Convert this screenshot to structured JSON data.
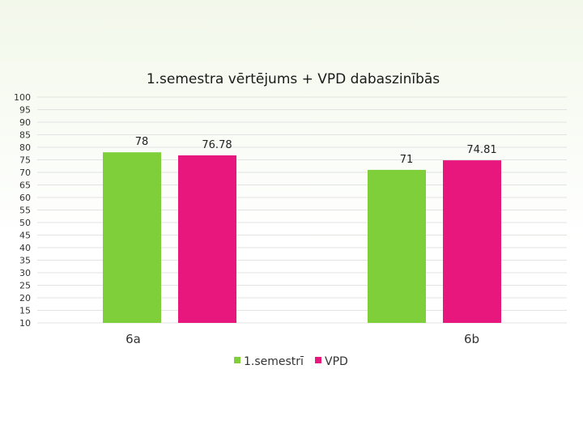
{
  "chart_data": {
    "type": "bar",
    "title": "1.semestra vērtējums + VPD dabaszinībās",
    "xlabel": "",
    "ylabel": "",
    "categories": [
      "6a",
      "6b"
    ],
    "series": [
      {
        "name": "1.semestrī",
        "color": "#7ecf3a",
        "values": [
          78,
          71
        ],
        "labels": [
          "78",
          "71"
        ]
      },
      {
        "name": "VPD",
        "color": "#e8177e",
        "values": [
          76.78,
          74.81
        ],
        "labels": [
          "76.78",
          "74.81"
        ]
      }
    ],
    "ylim": [
      10,
      100
    ],
    "ytick_step": 5,
    "grid": true,
    "legend": "bottom"
  }
}
